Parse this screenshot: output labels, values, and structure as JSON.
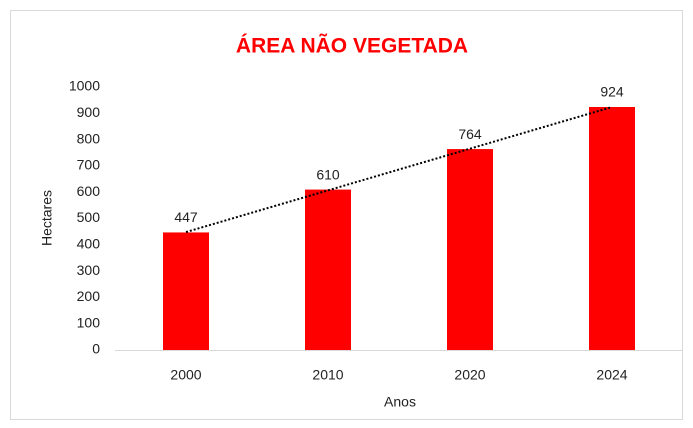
{
  "chart_data": {
    "type": "bar",
    "title": "ÁREA NÃO VEGETADA",
    "xlabel": "Anos",
    "ylabel": "Hectares",
    "categories": [
      "2000",
      "2010",
      "2020",
      "2024"
    ],
    "values": [
      447,
      610,
      764,
      924
    ],
    "color": "#ff0000",
    "trendline": "linear",
    "ylim": [
      0,
      1000
    ],
    "yticks": [
      0,
      100,
      200,
      300,
      400,
      500,
      600,
      700,
      800,
      900,
      1000
    ],
    "grid": false
  }
}
